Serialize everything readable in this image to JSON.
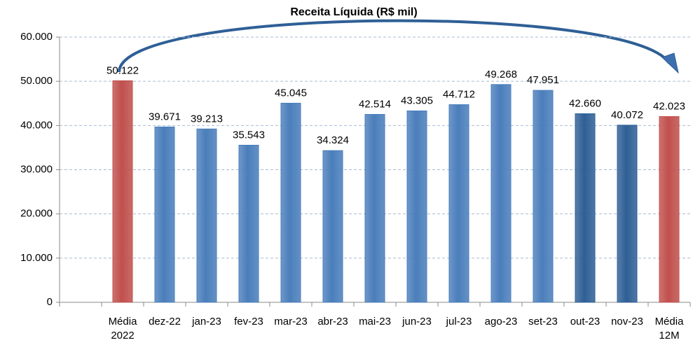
{
  "chart_data": {
    "type": "bar",
    "title": "Receita Líquida (R$ mil)",
    "categories": [
      null,
      "Média 2022",
      "dez-22",
      "jan-23",
      "fev-23",
      "mar-23",
      "abr-23",
      "mai-23",
      "jun-23",
      "jul-23",
      "ago-23",
      "set-23",
      "out-23",
      "nov-23",
      "Média 12M"
    ],
    "values": [
      null,
      50122,
      39671,
      39213,
      35543,
      45045,
      34324,
      42514,
      43305,
      44712,
      49268,
      47951,
      42660,
      40072,
      42023
    ],
    "value_labels": [
      null,
      "50.122",
      "39.671",
      "39.213",
      "35.543",
      "45.045",
      "34.324",
      "42.514",
      "43.305",
      "44.712",
      "49.268",
      "47.951",
      "42.660",
      "40.072",
      "42.023"
    ],
    "colors": [
      null,
      "#c0504d",
      "#4a7ebb",
      "#4a7ebb",
      "#4a7ebb",
      "#4a7ebb",
      "#4a7ebb",
      "#4a7ebb",
      "#4a7ebb",
      "#4a7ebb",
      "#4a7ebb",
      "#4a7ebb",
      "#2f5f96",
      "#2f5f96",
      "#c0504d"
    ],
    "ylim": [
      0,
      60000
    ],
    "yticks": [
      0,
      {
        "value": 10000,
        "label": "10.000"
      },
      {
        "value": 20000,
        "label": "20.000"
      },
      {
        "value": 30000,
        "label": "30.000"
      },
      {
        "value": 40000,
        "label": "40.000"
      },
      {
        "value": 50000,
        "label": "50.000"
      },
      {
        "value": 60000,
        "label": "60.000"
      }
    ],
    "grid": true
  }
}
